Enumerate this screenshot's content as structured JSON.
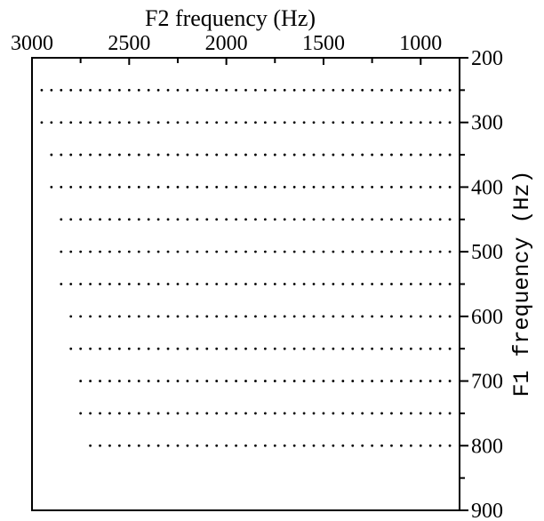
{
  "chart_data": {
    "type": "scatter",
    "xlabel": "F2 frequency (Hz)",
    "ylabel": "F1 frequency (Hz)",
    "x_axis_position": "top",
    "x_reversed": true,
    "y_axis_position": "right",
    "y_reversed": true,
    "xlim": [
      3000,
      800
    ],
    "ylim": [
      200,
      900
    ],
    "x_ticks": [
      3000,
      2500,
      2000,
      1500,
      1000
    ],
    "x_tick_labels": [
      "3000",
      "2500",
      "2000",
      "1500",
      "1000"
    ],
    "x_minor_ticks": [
      2750,
      2250,
      1750,
      1250
    ],
    "y_ticks": [
      200,
      300,
      400,
      500,
      600,
      700,
      800,
      900
    ],
    "y_tick_labels": [
      "200",
      "300",
      "400",
      "500",
      "600",
      "700",
      "800",
      "900"
    ],
    "y_minor_ticks": [
      250,
      350,
      450,
      550,
      650,
      750,
      850
    ],
    "grid": false,
    "legend": "none",
    "point_color": "#000000",
    "point_grid": {
      "x_step": 50,
      "x_end": 850,
      "rows": [
        {
          "f1": 250,
          "f2_start": 2950
        },
        {
          "f1": 300,
          "f2_start": 2950
        },
        {
          "f1": 350,
          "f2_start": 2900
        },
        {
          "f1": 400,
          "f2_start": 2900
        },
        {
          "f1": 450,
          "f2_start": 2850
        },
        {
          "f1": 500,
          "f2_start": 2850
        },
        {
          "f1": 550,
          "f2_start": 2850
        },
        {
          "f1": 600,
          "f2_start": 2800
        },
        {
          "f1": 650,
          "f2_start": 2800
        },
        {
          "f1": 700,
          "f2_start": 2750
        },
        {
          "f1": 750,
          "f2_start": 2750
        },
        {
          "f1": 800,
          "f2_start": 2700
        }
      ]
    }
  }
}
